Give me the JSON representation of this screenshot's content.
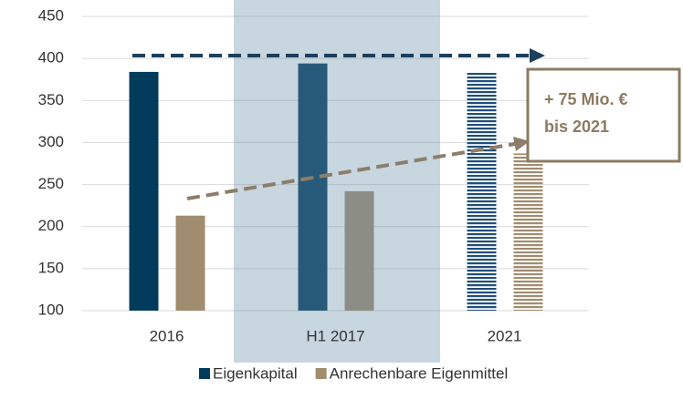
{
  "chart_data": {
    "type": "bar",
    "categories": [
      "2016",
      "H1 2017",
      "2021"
    ],
    "series": [
      {
        "name": "Eigenkapital",
        "color": "#003b5c",
        "values": [
          384,
          394,
          384
        ]
      },
      {
        "name": "Anrechenbare Eigenmittel",
        "color": "#a08c6e",
        "values": [
          213,
          242,
          287
        ]
      }
    ],
    "hatch": [
      false,
      false,
      true
    ],
    "ylim": [
      100,
      450
    ],
    "yticks": [
      100,
      150,
      200,
      250,
      300,
      350,
      400,
      450
    ],
    "grid": true,
    "legend": "bottom",
    "annotation": [
      "+ 75 Mio. €",
      "bis 2021"
    ]
  }
}
